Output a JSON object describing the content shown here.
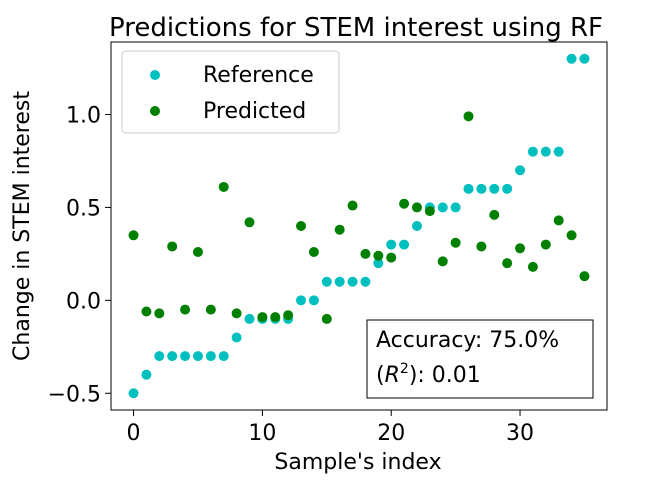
{
  "chart_data": {
    "type": "scatter",
    "title": "Predictions for STEM interest using RF",
    "xlabel": "Sample's index",
    "ylabel": "Change in STEM interest",
    "xlim": [
      -1.75,
      36.75
    ],
    "ylim": [
      -0.59,
      1.39
    ],
    "x_ticks": [
      0,
      10,
      20,
      30
    ],
    "x_tick_labels": [
      "0",
      "10",
      "20",
      "30"
    ],
    "y_ticks": [
      -0.5,
      0.0,
      0.5,
      1.0
    ],
    "y_tick_labels": [
      "−0.5",
      "0.0",
      "0.5",
      "1.0"
    ],
    "grid": false,
    "legend_position": "upper-left",
    "series": [
      {
        "name": "Reference",
        "color": "#00bfbf",
        "x": [
          0,
          1,
          2,
          3,
          4,
          5,
          6,
          7,
          8,
          9,
          10,
          11,
          12,
          13,
          14,
          15,
          16,
          17,
          18,
          19,
          20,
          21,
          22,
          23,
          24,
          25,
          26,
          27,
          28,
          29,
          30,
          31,
          32,
          33,
          34,
          35
        ],
        "y": [
          -0.5,
          -0.4,
          -0.3,
          -0.3,
          -0.3,
          -0.3,
          -0.3,
          -0.3,
          -0.2,
          -0.1,
          -0.1,
          -0.1,
          -0.1,
          0.0,
          0.0,
          0.1,
          0.1,
          0.1,
          0.1,
          0.2,
          0.3,
          0.3,
          0.4,
          0.5,
          0.5,
          0.5,
          0.6,
          0.6,
          0.6,
          0.6,
          0.7,
          0.8,
          0.8,
          0.8,
          1.3,
          1.3
        ]
      },
      {
        "name": "Predicted",
        "color": "#008000",
        "x": [
          0,
          1,
          2,
          3,
          4,
          5,
          6,
          7,
          8,
          9,
          10,
          11,
          12,
          13,
          14,
          15,
          16,
          17,
          18,
          19,
          20,
          21,
          22,
          23,
          24,
          25,
          26,
          27,
          28,
          29,
          30,
          31,
          32,
          33,
          34,
          35
        ],
        "y": [
          0.35,
          -0.06,
          -0.07,
          0.29,
          -0.05,
          0.26,
          -0.05,
          0.61,
          -0.07,
          0.42,
          -0.09,
          -0.09,
          -0.08,
          0.4,
          0.26,
          -0.1,
          0.38,
          0.51,
          0.25,
          0.24,
          0.23,
          0.52,
          0.5,
          0.48,
          0.21,
          0.31,
          0.99,
          0.29,
          0.46,
          0.2,
          0.28,
          0.18,
          0.3,
          0.43,
          0.35,
          0.13
        ]
      }
    ],
    "annotation": {
      "line1": "Accuracy: 75.0%",
      "line2_prefix": "(",
      "line2_var": "R",
      "line2_sup": "2",
      "line2_suffix": "): 0.01"
    }
  }
}
